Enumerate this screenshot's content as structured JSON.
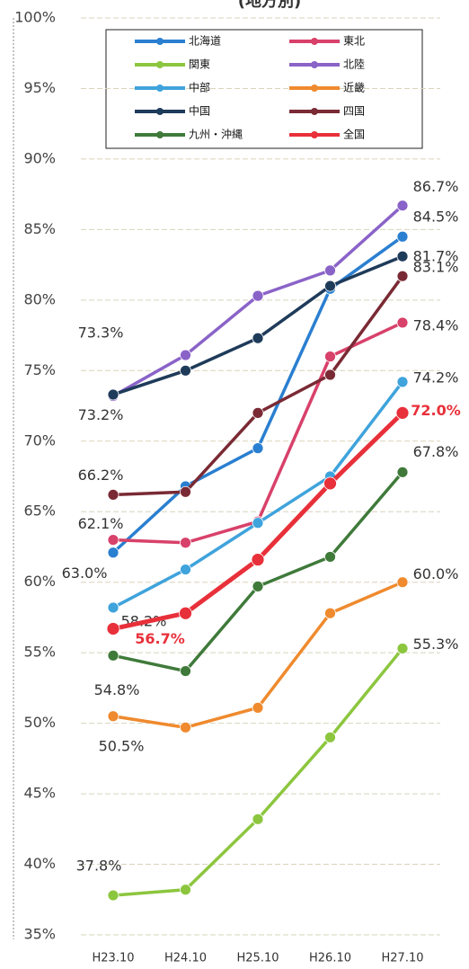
{
  "chart_data": {
    "type": "line",
    "title": "(地方別)",
    "categories": [
      "H23.10",
      "H24.10",
      "H25.10",
      "H26.10",
      "H27.10"
    ],
    "ylim": [
      35,
      100
    ],
    "yticks": [
      {
        "value": 35,
        "label": "35%"
      },
      {
        "value": 40,
        "label": "40%"
      },
      {
        "value": 45,
        "label": "45%"
      },
      {
        "value": 50,
        "label": "50%"
      },
      {
        "value": 55,
        "label": "55%"
      },
      {
        "value": 60,
        "label": "60%"
      },
      {
        "value": 65,
        "label": "65%"
      },
      {
        "value": 70,
        "label": "70%"
      },
      {
        "value": 75,
        "label": "75%"
      },
      {
        "value": 80,
        "label": "80%"
      },
      {
        "value": 85,
        "label": "85%"
      },
      {
        "value": 90,
        "label": "90%"
      },
      {
        "value": 95,
        "label": "95%"
      },
      {
        "value": 100,
        "label": "100%"
      }
    ],
    "grid": true,
    "series": [
      {
        "name": "北海道",
        "color": "#2a7fd0",
        "values": [
          62.1,
          66.8,
          69.5,
          80.8,
          84.5
        ],
        "value_labels": [
          "62.1%",
          null,
          null,
          null,
          "84.5%"
        ]
      },
      {
        "name": "東北",
        "color": "#d8416a",
        "values": [
          63.0,
          62.8,
          64.3,
          76.0,
          78.4
        ],
        "value_labels": [
          "63.0%",
          null,
          null,
          null,
          "78.4%"
        ]
      },
      {
        "name": "関東",
        "color": "#8cc63e",
        "values": [
          37.8,
          38.2,
          43.2,
          49.0,
          55.3
        ],
        "value_labels": [
          "37.8%",
          null,
          null,
          null,
          "55.3%"
        ]
      },
      {
        "name": "北陸",
        "color": "#8a63c8",
        "values": [
          73.2,
          76.1,
          80.3,
          82.1,
          86.7
        ],
        "value_labels": [
          "73.2%",
          null,
          null,
          null,
          "86.7%"
        ]
      },
      {
        "name": "中部",
        "color": "#3fa3dc",
        "values": [
          58.2,
          60.9,
          64.2,
          67.5,
          74.2
        ],
        "value_labels": [
          "58.2%",
          null,
          null,
          null,
          "74.2%"
        ]
      },
      {
        "name": "近畿",
        "color": "#ef8a2e",
        "values": [
          50.5,
          49.7,
          51.1,
          57.8,
          60.0
        ],
        "value_labels": [
          "50.5%",
          null,
          null,
          null,
          "60.0%"
        ]
      },
      {
        "name": "中国",
        "color": "#1f3b5a",
        "values": [
          73.3,
          75.0,
          77.3,
          81.0,
          83.1
        ],
        "value_labels": [
          "73.3%",
          null,
          null,
          null,
          "83.1%"
        ]
      },
      {
        "name": "四国",
        "color": "#7a2a34",
        "values": [
          66.2,
          66.4,
          72.0,
          74.7,
          81.7
        ],
        "value_labels": [
          "66.2%",
          null,
          null,
          null,
          "81.7%"
        ]
      },
      {
        "name": "九州・沖縄",
        "color": "#3f7a3a",
        "values": [
          54.8,
          53.7,
          59.7,
          61.8,
          67.8
        ],
        "value_labels": [
          "54.8%",
          null,
          null,
          null,
          "67.8%"
        ]
      },
      {
        "name": "全国",
        "color": "#e8303a",
        "values": [
          56.7,
          57.8,
          61.6,
          67.0,
          72.0
        ],
        "value_labels": [
          "56.7%",
          null,
          null,
          null,
          "72.0%"
        ]
      }
    ]
  }
}
